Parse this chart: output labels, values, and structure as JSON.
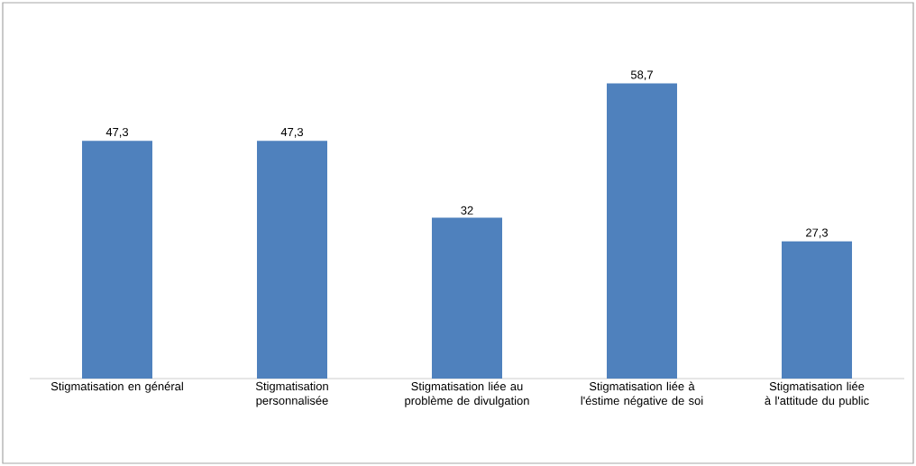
{
  "chart_data": {
    "type": "bar",
    "categories": [
      "Stigmatisation en général",
      "Stigmatisation personnalisée",
      "Stigmatisation liée au problème de divulgation",
      "Stigmatisation liée à l'éstime négative de soi",
      "Stigmatisation liée à l'attitude du public"
    ],
    "values": [
      47.3,
      47.3,
      32,
      58.7,
      27.3
    ],
    "value_labels": [
      "47,3",
      "47,3",
      "32",
      "58,7",
      "27,3"
    ],
    "color": "#4f81bd"
  }
}
